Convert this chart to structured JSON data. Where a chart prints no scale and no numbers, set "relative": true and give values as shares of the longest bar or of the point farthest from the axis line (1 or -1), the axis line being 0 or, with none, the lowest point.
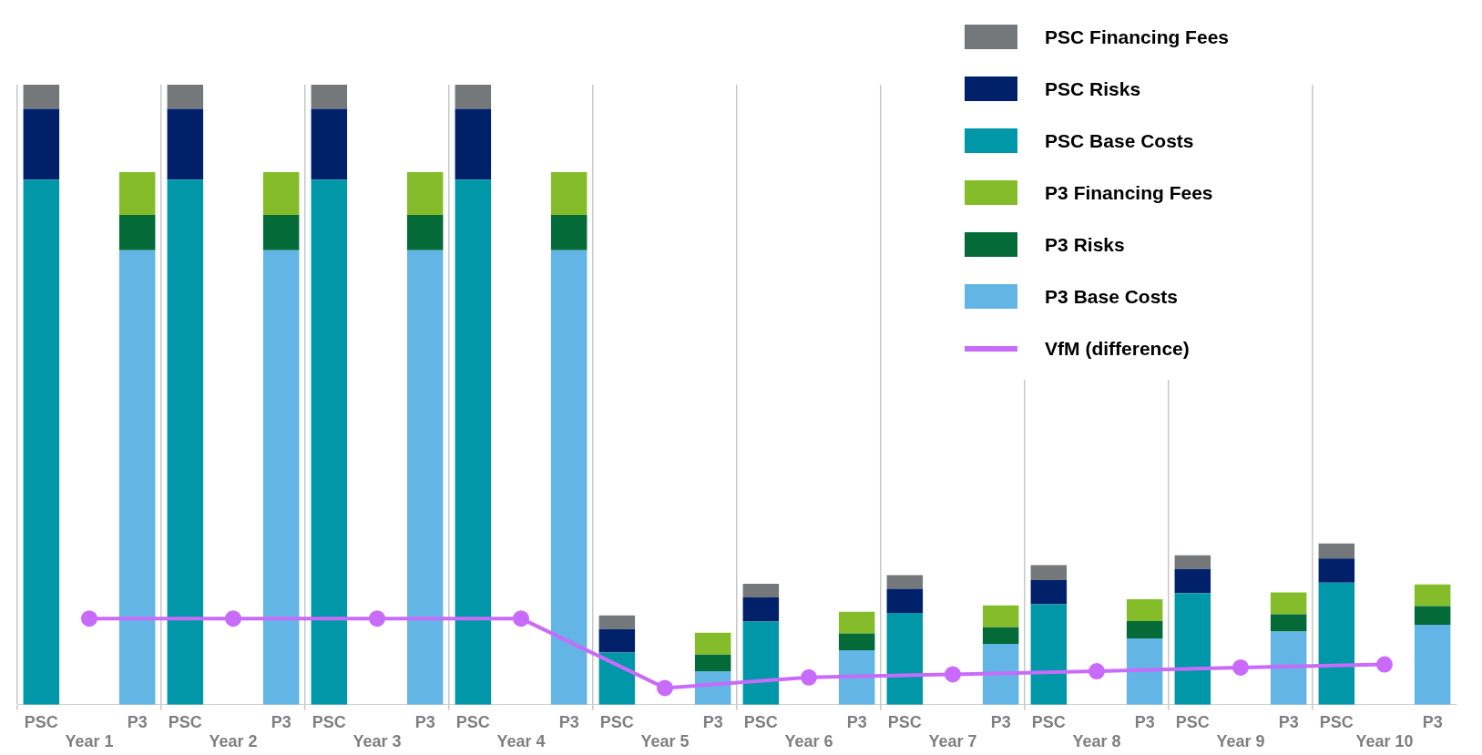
{
  "chart_data": {
    "type": "bar",
    "stacked": true,
    "relative": true,
    "grid": "x",
    "legend": "top right",
    "marker": "circle",
    "categories": [
      "PSC",
      "Year 1",
      "P3",
      "PSC",
      "Year 2",
      "P3",
      "PSC",
      "Year 3",
      "P3",
      "PSC",
      "Year 4",
      "P3",
      "PSC",
      "Year 5",
      "P3",
      "PSC",
      "Year 6",
      "P3",
      "PSC",
      "Year 7",
      "P3",
      "PSC",
      "Year 8",
      "P3",
      "PSC",
      "Year 9",
      "P3",
      "PSC",
      "Year 10",
      "P3"
    ],
    "series": [
      {
        "name": "P3 Base Costs",
        "color": "#62b5e5",
        "values": [
          null,
          null,
          0.733,
          null,
          null,
          0.733,
          null,
          null,
          0.733,
          null,
          null,
          0.733,
          null,
          null,
          0.054,
          null,
          null,
          0.088,
          null,
          null,
          0.098,
          null,
          null,
          0.107,
          null,
          null,
          0.118,
          null,
          null,
          0.129
        ]
      },
      {
        "name": "P3 Risks",
        "color": "#046a38",
        "values": [
          null,
          null,
          0.057,
          null,
          null,
          0.057,
          null,
          null,
          0.057,
          null,
          null,
          0.057,
          null,
          null,
          0.027,
          null,
          null,
          0.027,
          null,
          null,
          0.027,
          null,
          null,
          0.028,
          null,
          null,
          0.028,
          null,
          null,
          0.03
        ]
      },
      {
        "name": "P3 Financing Fees",
        "color": "#84bd29",
        "values": [
          null,
          null,
          0.069,
          null,
          null,
          0.069,
          null,
          null,
          0.069,
          null,
          null,
          0.069,
          null,
          null,
          0.035,
          null,
          null,
          0.035,
          null,
          null,
          0.035,
          null,
          null,
          0.035,
          null,
          null,
          0.035,
          null,
          null,
          0.035
        ]
      },
      {
        "name": "PSC Base Costs",
        "color": "#0097a9",
        "values": [
          0.847,
          null,
          null,
          0.847,
          null,
          null,
          0.847,
          null,
          null,
          0.847,
          null,
          null,
          0.084,
          null,
          null,
          0.134,
          null,
          null,
          0.148,
          null,
          null,
          0.162,
          null,
          null,
          0.18,
          null,
          null,
          0.197,
          null,
          null
        ]
      },
      {
        "name": "PSC Risks",
        "color": "#002169",
        "values": [
          0.114,
          null,
          null,
          0.114,
          null,
          null,
          0.114,
          null,
          null,
          0.114,
          null,
          null,
          0.038,
          null,
          null,
          0.039,
          null,
          null,
          0.039,
          null,
          null,
          0.039,
          null,
          null,
          0.039,
          null,
          null,
          0.039,
          null,
          null
        ]
      },
      {
        "name": "PSC Financing Fees",
        "color": "#75787b",
        "values": [
          0.039,
          null,
          null,
          0.039,
          null,
          null,
          0.039,
          null,
          null,
          0.039,
          null,
          null,
          0.022,
          null,
          null,
          0.022,
          null,
          null,
          0.022,
          null,
          null,
          0.024,
          null,
          null,
          0.022,
          null,
          null,
          0.024,
          null,
          null
        ]
      },
      {
        "name": "VfM (difference)",
        "type": "line",
        "color": "#c86bfa",
        "values": [
          null,
          0.139,
          null,
          null,
          0.139,
          null,
          null,
          0.139,
          null,
          null,
          0.139,
          null,
          null,
          0.027,
          null,
          null,
          0.044,
          null,
          null,
          0.049,
          null,
          null,
          0.054,
          null,
          null,
          0.06,
          null,
          null,
          0.065,
          null
        ]
      }
    ]
  }
}
